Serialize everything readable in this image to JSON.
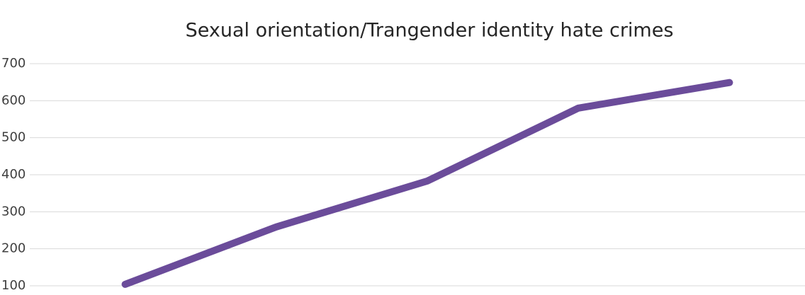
{
  "chart_data": {
    "type": "line",
    "title": "Sexual orientation/Trangender identity hate crimes",
    "categories": [
      null,
      null,
      null,
      null,
      null
    ],
    "series": [
      {
        "name": "Sexual orientation/Trangender identity hate crimes",
        "color": "#6b4c9a",
        "values": [
          104,
          259,
          383,
          580,
          649
        ]
      }
    ],
    "ylim": [
      100,
      700
    ],
    "yticks": [
      100,
      200,
      300,
      400,
      500,
      600,
      700
    ],
    "grid": true
  }
}
